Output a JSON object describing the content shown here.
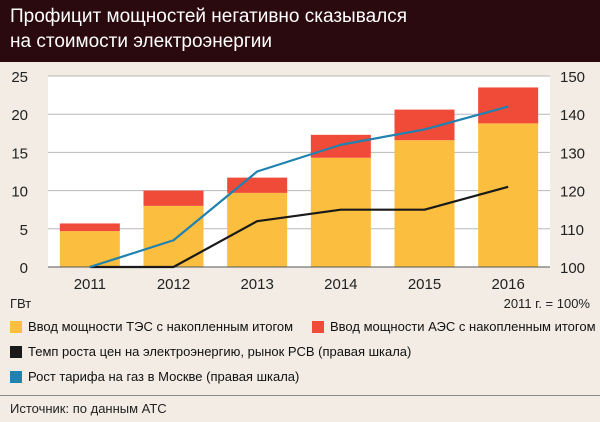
{
  "title_line1": "Профицит мощностей негативно сказывался",
  "title_line2": "на стоимости электроэнергии",
  "left_unit": "ГВт",
  "right_unit": "2011 г. = 100%",
  "source": "Источник: по данным АТС",
  "colors": {
    "tes": "#fbbe3f",
    "aes": "#f04a38",
    "rsv": "#1a1a1a",
    "gas": "#1f82b0"
  },
  "chart_data": {
    "type": "bar",
    "stacked": true,
    "categories": [
      "2011",
      "2012",
      "2013",
      "2014",
      "2015",
      "2016"
    ],
    "series": [
      {
        "name": "Ввод мощности ТЭС с накопленным итогом",
        "values": [
          4.7,
          8.0,
          9.7,
          14.3,
          16.6,
          18.8
        ]
      },
      {
        "name": "Ввод мощности АЭС с накопленным итогом",
        "values": [
          1.0,
          2.0,
          2.0,
          3.0,
          4.0,
          4.7
        ]
      }
    ],
    "lines": [
      {
        "name": "Темп роста цен на электроэнергию, рынок РСВ (правая шкала)",
        "axis": "right",
        "values": [
          100,
          100,
          112,
          115,
          115,
          121
        ]
      },
      {
        "name": "Рост тарифа на газ в Москве (правая шкала)",
        "axis": "right",
        "values": [
          100,
          107,
          125,
          132,
          136,
          142
        ]
      }
    ],
    "ylim": [
      0,
      25
    ],
    "yticks": [
      "0",
      "5",
      "10",
      "15",
      "20",
      "25"
    ],
    "y2lim": [
      100,
      150
    ],
    "y2ticks": [
      "100",
      "110",
      "120",
      "130",
      "140",
      "150"
    ],
    "grid": true,
    "legend": "bottom"
  }
}
